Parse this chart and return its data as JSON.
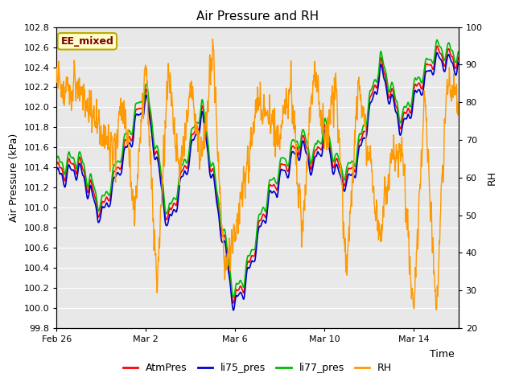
{
  "title": "Air Pressure and RH",
  "xlabel": "Time",
  "ylabel_left": "Air Pressure (kPa)",
  "ylabel_right": "RH",
  "ylim_left": [
    99.8,
    102.8
  ],
  "ylim_right": [
    20,
    100
  ],
  "yticks_left": [
    99.8,
    100.0,
    100.2,
    100.4,
    100.6,
    100.8,
    101.0,
    101.2,
    101.4,
    101.6,
    101.8,
    102.0,
    102.2,
    102.4,
    102.6,
    102.8
  ],
  "yticks_right": [
    20,
    30,
    40,
    50,
    60,
    70,
    80,
    90,
    100
  ],
  "xtick_labels": [
    "Feb 26",
    "Mar 2",
    "Mar 6",
    "Mar 10",
    "Mar 14"
  ],
  "xtick_pos": [
    0,
    4,
    8,
    12,
    16
  ],
  "xlim": [
    0,
    18
  ],
  "fig_bg_color": "#ffffff",
  "plot_bg_color": "#e8e8e8",
  "grid_color": "#ffffff",
  "line_colors": {
    "AtmPres": "#ff0000",
    "li75_pres": "#0000cc",
    "li77_pres": "#00bb00",
    "RH": "#ff9900"
  },
  "legend_label": "EE_mixed",
  "legend_label_color": "#800000",
  "legend_label_bg": "#ffffcc",
  "legend_label_border": "#bbaa00",
  "title_fontsize": 11,
  "axis_fontsize": 9,
  "tick_fontsize": 8,
  "linewidth_pres": 1.2,
  "linewidth_rh": 1.0
}
